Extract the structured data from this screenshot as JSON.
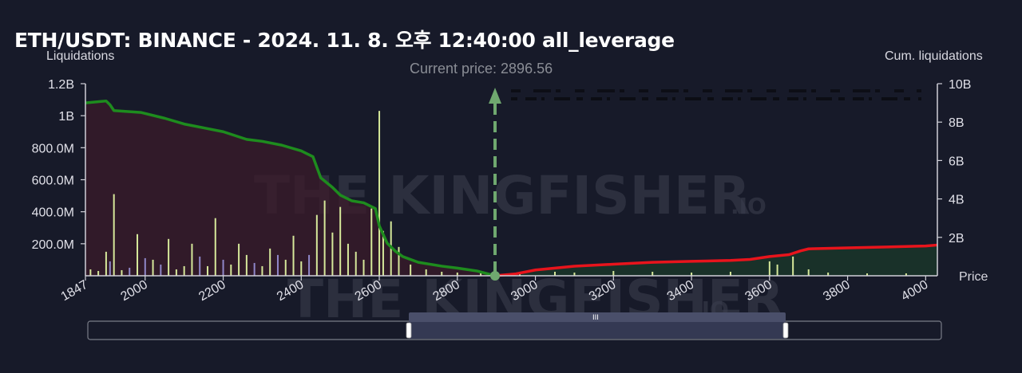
{
  "header": {
    "title": "ETH/USDT: BINANCE - 2024. 11. 8. 오후 12:40:00 all_leverage",
    "left_axis_label": "Liquidations",
    "right_axis_label": "Cum. liquidations",
    "price_axis_label": "Price",
    "current_price_label": "Current price: 2896.56"
  },
  "watermark": {
    "text": "THE KINGFISHER",
    "suffix": ".IO"
  },
  "chart_data": {
    "type": "bar",
    "title": "ETH/USDT: BINANCE - 2024. 11. 8. 오후 12:40:00 all_leverage",
    "xlabel": "Price",
    "ylabel": "Liquidations",
    "y2label": "Cum. liquidations",
    "xlim": [
      1847,
      4030
    ],
    "ylim": [
      0,
      1200000000
    ],
    "y2lim": [
      0,
      10000000000
    ],
    "x_ticks": [
      1847,
      2000,
      2200,
      2400,
      2600,
      2800,
      3000,
      3200,
      3400,
      3600,
      3800,
      4000
    ],
    "y_ticks": [
      {
        "v": 200000000,
        "label": "200.0M"
      },
      {
        "v": 400000000,
        "label": "400.0M"
      },
      {
        "v": 600000000,
        "label": "600.0M"
      },
      {
        "v": 800000000,
        "label": "800.0M"
      },
      {
        "v": 1000000000,
        "label": "1B"
      },
      {
        "v": 1200000000,
        "label": "1.2B"
      }
    ],
    "y2_ticks": [
      {
        "v": 2000000000,
        "label": "2B"
      },
      {
        "v": 4000000000,
        "label": "4B"
      },
      {
        "v": 6000000000,
        "label": "6B"
      },
      {
        "v": 8000000000,
        "label": "8B"
      },
      {
        "v": 10000000000,
        "label": "10B"
      }
    ],
    "current_price": 2896.56,
    "grid": false,
    "colors": {
      "long_liquidations": "#d6e89a",
      "short_liquidations": "#8f87c9",
      "cum_long": "#1e8c1e",
      "cum_short": "#e8141c",
      "long_fill": "#3b1b2a",
      "short_fill": "#1b3a2a",
      "current_price_line": "#6fa86f"
    },
    "liquidation_bars": [
      {
        "x": 1860,
        "y": 40000000,
        "side": "long"
      },
      {
        "x": 1880,
        "y": 30000000,
        "side": "long"
      },
      {
        "x": 1900,
        "y": 150000000,
        "side": "long"
      },
      {
        "x": 1910,
        "y": 90000000,
        "side": "short"
      },
      {
        "x": 1920,
        "y": 510000000,
        "side": "long"
      },
      {
        "x": 1940,
        "y": 35000000,
        "side": "long"
      },
      {
        "x": 1960,
        "y": 50000000,
        "side": "short"
      },
      {
        "x": 1980,
        "y": 260000000,
        "side": "long"
      },
      {
        "x": 2000,
        "y": 110000000,
        "side": "short"
      },
      {
        "x": 2020,
        "y": 100000000,
        "side": "long"
      },
      {
        "x": 2040,
        "y": 70000000,
        "side": "short"
      },
      {
        "x": 2060,
        "y": 230000000,
        "side": "long"
      },
      {
        "x": 2080,
        "y": 40000000,
        "side": "long"
      },
      {
        "x": 2100,
        "y": 60000000,
        "side": "long"
      },
      {
        "x": 2120,
        "y": 200000000,
        "side": "long"
      },
      {
        "x": 2140,
        "y": 120000000,
        "side": "short"
      },
      {
        "x": 2160,
        "y": 60000000,
        "side": "long"
      },
      {
        "x": 2180,
        "y": 360000000,
        "side": "long"
      },
      {
        "x": 2200,
        "y": 100000000,
        "side": "short"
      },
      {
        "x": 2220,
        "y": 70000000,
        "side": "long"
      },
      {
        "x": 2240,
        "y": 200000000,
        "side": "long"
      },
      {
        "x": 2260,
        "y": 130000000,
        "side": "long"
      },
      {
        "x": 2280,
        "y": 80000000,
        "side": "short"
      },
      {
        "x": 2300,
        "y": 60000000,
        "side": "long"
      },
      {
        "x": 2320,
        "y": 170000000,
        "side": "long"
      },
      {
        "x": 2340,
        "y": 130000000,
        "side": "short"
      },
      {
        "x": 2360,
        "y": 100000000,
        "side": "long"
      },
      {
        "x": 2380,
        "y": 250000000,
        "side": "long"
      },
      {
        "x": 2400,
        "y": 90000000,
        "side": "long"
      },
      {
        "x": 2420,
        "y": 130000000,
        "side": "short"
      },
      {
        "x": 2440,
        "y": 380000000,
        "side": "long"
      },
      {
        "x": 2460,
        "y": 470000000,
        "side": "long"
      },
      {
        "x": 2480,
        "y": 270000000,
        "side": "long"
      },
      {
        "x": 2500,
        "y": 430000000,
        "side": "long"
      },
      {
        "x": 2520,
        "y": 200000000,
        "side": "long"
      },
      {
        "x": 2540,
        "y": 150000000,
        "side": "long"
      },
      {
        "x": 2560,
        "y": 100000000,
        "side": "long"
      },
      {
        "x": 2580,
        "y": 420000000,
        "side": "long"
      },
      {
        "x": 2600,
        "y": 1030000000,
        "side": "long"
      },
      {
        "x": 2610,
        "y": 280000000,
        "side": "long"
      },
      {
        "x": 2630,
        "y": 340000000,
        "side": "long"
      },
      {
        "x": 2650,
        "y": 180000000,
        "side": "long"
      },
      {
        "x": 2680,
        "y": 70000000,
        "side": "long"
      },
      {
        "x": 2720,
        "y": 40000000,
        "side": "long"
      },
      {
        "x": 2760,
        "y": 25000000,
        "side": "long"
      },
      {
        "x": 2800,
        "y": 20000000,
        "side": "long"
      },
      {
        "x": 2860,
        "y": 15000000,
        "side": "long"
      },
      {
        "x": 2960,
        "y": 20000000,
        "side": "long"
      },
      {
        "x": 3050,
        "y": 25000000,
        "side": "long"
      },
      {
        "x": 3100,
        "y": 20000000,
        "side": "long"
      },
      {
        "x": 3200,
        "y": 30000000,
        "side": "long"
      },
      {
        "x": 3300,
        "y": 25000000,
        "side": "long"
      },
      {
        "x": 3400,
        "y": 20000000,
        "side": "long"
      },
      {
        "x": 3500,
        "y": 25000000,
        "side": "long"
      },
      {
        "x": 3600,
        "y": 90000000,
        "side": "long"
      },
      {
        "x": 3620,
        "y": 70000000,
        "side": "long"
      },
      {
        "x": 3660,
        "y": 120000000,
        "side": "long"
      },
      {
        "x": 3700,
        "y": 40000000,
        "side": "long"
      },
      {
        "x": 3750,
        "y": 20000000,
        "side": "long"
      },
      {
        "x": 3850,
        "y": 15000000,
        "side": "long"
      },
      {
        "x": 3950,
        "y": 15000000,
        "side": "long"
      }
    ],
    "series": [
      {
        "name": "Cumulative long liquidations",
        "side": "long",
        "x": [
          1847,
          1900,
          1910,
          1920,
          1990,
          2050,
          2100,
          2150,
          2200,
          2260,
          2300,
          2350,
          2400,
          2430,
          2450,
          2480,
          2500,
          2530,
          2560,
          2590,
          2600,
          2620,
          2640,
          2660,
          2700,
          2760,
          2800,
          2850,
          2896.56
        ],
        "y": [
          9000000000,
          9100000000,
          8900000000,
          8600000000,
          8500000000,
          8200000000,
          7900000000,
          7700000000,
          7500000000,
          7100000000,
          7000000000,
          6800000000,
          6500000000,
          6200000000,
          5100000000,
          4600000000,
          4200000000,
          3900000000,
          3800000000,
          3500000000,
          2600000000,
          1700000000,
          1300000000,
          1000000000,
          700000000,
          500000000,
          400000000,
          250000000,
          0
        ]
      },
      {
        "name": "Cumulative short liquidations",
        "side": "short",
        "x": [
          2896.56,
          2950,
          3000,
          3100,
          3200,
          3300,
          3400,
          3500,
          3550,
          3600,
          3650,
          3680,
          3700,
          3800,
          3900,
          4000,
          4030
        ],
        "y": [
          0,
          100000000,
          300000000,
          500000000,
          600000000,
          700000000,
          750000000,
          800000000,
          850000000,
          1000000000,
          1100000000,
          1300000000,
          1400000000,
          1450000000,
          1500000000,
          1550000000,
          1600000000
        ]
      }
    ]
  }
}
